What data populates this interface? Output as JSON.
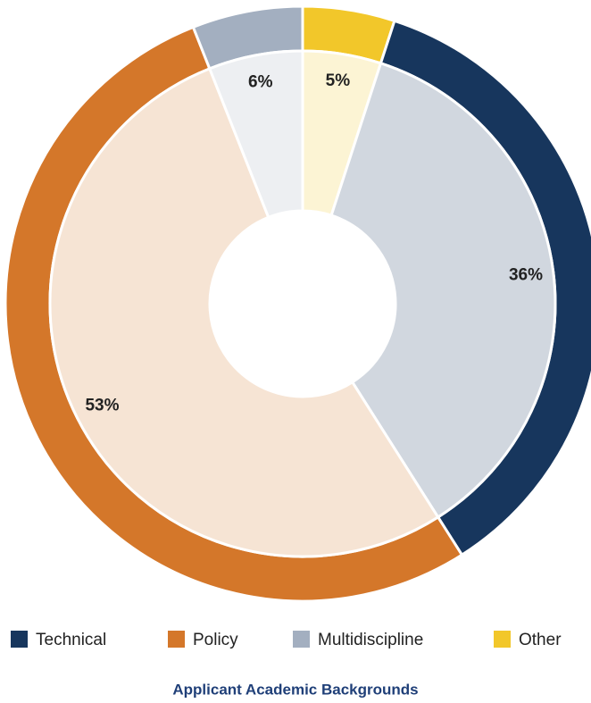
{
  "chart_data": {
    "type": "donut",
    "title": "Applicant Academic Backgrounds",
    "series": [
      {
        "name": "Other",
        "color": "#f2c72a",
        "values": [
          5
        ],
        "value_labels": [
          "5%"
        ]
      },
      {
        "name": "Technical",
        "color": "#17365d",
        "values": [
          36
        ],
        "value_labels": [
          "36%"
        ]
      },
      {
        "name": "Policy",
        "color": "#d4772a",
        "values": [
          53
        ],
        "value_labels": [
          "53%"
        ]
      },
      {
        "name": "Multidiscipline",
        "color": "#a3afc0",
        "values": [
          6
        ],
        "value_labels": [
          "6%"
        ]
      }
    ],
    "legend_order": [
      "Technical",
      "Policy",
      "Multidiscipline",
      "Other"
    ]
  }
}
